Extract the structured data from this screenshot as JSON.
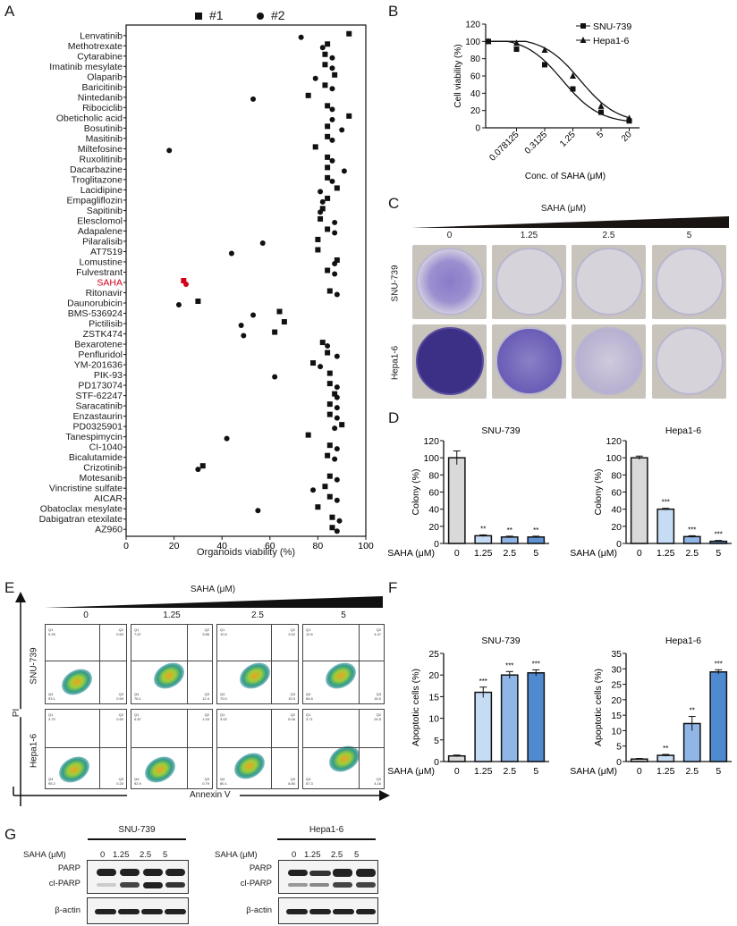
{
  "panels": {
    "A": {
      "letter": "A"
    },
    "B": {
      "letter": "B"
    },
    "C": {
      "letter": "C"
    },
    "D": {
      "letter": "D"
    },
    "E": {
      "letter": "E"
    },
    "F": {
      "letter": "F"
    },
    "G": {
      "letter": "G"
    }
  },
  "panelA": {
    "legend": [
      {
        "marker": "square",
        "label": "#1"
      },
      {
        "marker": "circle",
        "label": "#2"
      }
    ],
    "xlabel": "Organoids viability (%)",
    "xticks": [
      "0",
      "20",
      "40",
      "60",
      "80",
      "100"
    ],
    "highlight_color": "#d0021b"
  },
  "panelB": {
    "ylabel": "Cell viability (%)",
    "xlabel": "Conc. of SAHA (μM)",
    "yticks": [
      "0",
      "20",
      "40",
      "60",
      "80",
      "100",
      "120"
    ],
    "xticks": [
      "0.078125",
      "0.3125",
      "1.25",
      "5",
      "20"
    ],
    "legend": [
      "SNU-739",
      "Hepa1-6"
    ]
  },
  "panelC": {
    "title": "SAHA (μM)",
    "concentrations": [
      "0",
      "1.25",
      "2.5",
      "5"
    ],
    "rows": [
      "SNU-739",
      "Hepa1-6"
    ]
  },
  "panelD": {
    "charts": [
      {
        "title": "SNU-739",
        "ylabel": "Colony (%)",
        "xprefix": "SAHA (μM)"
      },
      {
        "title": "Hepa1-6",
        "ylabel": "Colony (%)",
        "xprefix": "SAHA (μM)"
      }
    ]
  },
  "panelE": {
    "title": "SAHA (μM)",
    "concentrations": [
      "0",
      "1.25",
      "2.5",
      "5"
    ],
    "rows": [
      "SNU-739",
      "Hepa1-6"
    ],
    "yaxis": "PI",
    "xaxis": "Annexin V",
    "quadrants": [
      [
        [
          "5.28",
          "0.60",
          "93.1",
          "0.59"
        ],
        [
          "7.67",
          "3.86",
          "76.1",
          "12.4"
        ],
        [
          "10.6",
          "3.52",
          "70.0",
          "15.9"
        ],
        [
          "12.6",
          "4.47",
          "66.8",
          "16.0"
        ]
      ],
      [
        [
          "3.70",
          "0.60",
          "95.2",
          "0.20"
        ],
        [
          "4.87",
          "1.43",
          "92.9",
          "0.79"
        ],
        [
          "3.02",
          "8.06",
          "80.1",
          "8.80"
        ],
        [
          "3.71",
          "24.5",
          "67.3",
          "4.16"
        ]
      ]
    ]
  },
  "panelF": {
    "charts": [
      {
        "title": "SNU-739",
        "ylabel": "Apoptotic cells (%)",
        "xprefix": "SAHA (μM)"
      },
      {
        "title": "Hepa1-6",
        "ylabel": "Apoptotic cells (%)",
        "xprefix": "SAHA (μM)"
      }
    ]
  },
  "panelG": {
    "blots": [
      {
        "cell_line": "SNU-739",
        "conc_label": "SAHA (μM)",
        "concentrations": [
          "0",
          "1.25",
          "2.5",
          "5"
        ],
        "bands": [
          "PARP",
          "cl-PARP",
          "β-actin"
        ]
      },
      {
        "cell_line": "Hepa1-6",
        "conc_label": "SAHA (μM)",
        "concentrations": [
          "0",
          "1.25",
          "2.5",
          "5"
        ],
        "bands": [
          "PARP",
          "cl-PARP",
          "β-actin"
        ]
      }
    ]
  },
  "chart_data": [
    {
      "id": "A",
      "type": "scatter",
      "title": "",
      "xlabel": "Organoids viability (%)",
      "ylabel": "",
      "xlim": [
        0,
        100
      ],
      "legend": [
        "#1",
        "#2"
      ],
      "categories": [
        "Lenvatinib",
        "Methotrexate",
        "Cytarabine",
        "Imatinib mesylate",
        "Olaparib",
        "Baricitinib",
        "Nintedanib",
        "Ribociclib",
        "Obeticholic acid",
        "Bosutinib",
        "Masitinib",
        "Miltefosine",
        "Ruxolitinib",
        "Dacarbazine",
        "Troglitazone",
        "Lacidipine",
        "Empagliflozin",
        "Sapitinib",
        "Elesclomol",
        "Adapalene",
        "Pilaralisib",
        "AT7519",
        "Lomustine",
        "Fulvestrant",
        "SAHA",
        "Ritonavir",
        "Daunorubicin",
        "BMS-536924",
        "Pictilisib",
        "ZSTK474",
        "Bexarotene",
        "Penfluridol",
        "YM-201636",
        "PIK-93",
        "PD173074",
        "STF-62247",
        "Saracatinib",
        "Enzastaurin",
        "PD0325901",
        "Tanespimycin",
        "CI-1040",
        "Bicalutamide",
        "Crizotinib",
        "Motesanib",
        "Vincristine sulfate",
        "AICAR",
        "Obatoclax mesylate",
        "Dabigatran etexilate",
        "AZ960"
      ],
      "series": [
        {
          "name": "#1",
          "values": [
            93,
            84,
            83,
            83,
            87,
            83,
            76,
            84,
            93,
            84,
            84,
            79,
            84,
            84,
            84,
            88,
            84,
            82,
            81,
            84,
            80,
            80,
            88,
            84,
            24,
            85,
            30,
            64,
            66,
            62,
            82,
            84,
            78,
            85,
            85,
            87,
            85,
            85,
            90,
            76,
            85,
            84,
            32,
            85,
            83,
            85,
            80,
            86,
            86
          ]
        },
        {
          "name": "#2",
          "values": [
            73,
            82,
            86,
            86,
            79,
            86,
            53,
            86,
            86,
            90,
            86,
            18,
            86,
            91,
            86,
            81,
            82,
            81,
            87,
            87,
            57,
            44,
            87,
            87,
            25,
            88,
            22,
            53,
            48,
            49,
            84,
            88,
            81,
            62,
            88,
            88,
            88,
            88,
            87,
            42,
            88,
            87,
            30,
            88,
            78,
            88,
            55,
            89,
            88
          ]
        }
      ]
    },
    {
      "id": "B",
      "type": "line",
      "title": "",
      "xlabel": "Conc. of SAHA (μM)",
      "ylabel": "Cell viability (%)",
      "ylim": [
        0,
        120
      ],
      "x": [
        0,
        0.078125,
        0.3125,
        1.25,
        5,
        20
      ],
      "categories": [
        "0",
        "0.078125",
        "0.3125",
        "1.25",
        "5",
        "20"
      ],
      "series": [
        {
          "name": "SNU-739",
          "values": [
            100,
            91,
            73,
            45,
            18,
            8
          ]
        },
        {
          "name": "Hepa1-6",
          "values": [
            100,
            98,
            90,
            60,
            25,
            11
          ]
        }
      ]
    },
    {
      "id": "D-SNU-739",
      "type": "bar",
      "title": "SNU-739",
      "xlabel": "SAHA (μM)",
      "ylabel": "Colony (%)",
      "ylim": [
        0,
        120
      ],
      "categories": [
        "0",
        "1.25",
        "2.5",
        "5"
      ],
      "values": [
        100,
        9,
        7.5,
        7.5
      ],
      "errors": [
        8,
        1,
        1,
        1
      ],
      "annotations": [
        "",
        "**",
        "**",
        "**"
      ]
    },
    {
      "id": "D-Hepa1-6",
      "type": "bar",
      "title": "Hepa1-6",
      "xlabel": "SAHA (μM)",
      "ylabel": "Colony (%)",
      "ylim": [
        0,
        120
      ],
      "categories": [
        "0",
        "1.25",
        "2.5",
        "5"
      ],
      "values": [
        100,
        40,
        8,
        2.5
      ],
      "errors": [
        2,
        1,
        1,
        1
      ],
      "annotations": [
        "",
        "***",
        "***",
        "***"
      ]
    },
    {
      "id": "F-SNU-739",
      "type": "bar",
      "title": "SNU-739",
      "xlabel": "SAHA (μM)",
      "ylabel": "Apoptotic cells (%)",
      "ylim": [
        0,
        25
      ],
      "categories": [
        "0",
        "1.25",
        "2.5",
        "5"
      ],
      "values": [
        1.3,
        16,
        20,
        20.5
      ],
      "errors": [
        0.2,
        1.2,
        0.8,
        0.7
      ],
      "annotations": [
        "",
        "***",
        "***",
        "***"
      ]
    },
    {
      "id": "F-Hepa1-6",
      "type": "bar",
      "title": "Hepa1-6",
      "xlabel": "SAHA (μM)",
      "ylabel": "Apoptotic cells (%)",
      "ylim": [
        0,
        35
      ],
      "categories": [
        "0",
        "1.25",
        "2.5",
        "5"
      ],
      "values": [
        0.8,
        2,
        12.3,
        29
      ],
      "errors": [
        0.2,
        0.3,
        2.3,
        0.7
      ],
      "annotations": [
        "",
        "**",
        "**",
        "***"
      ]
    }
  ]
}
